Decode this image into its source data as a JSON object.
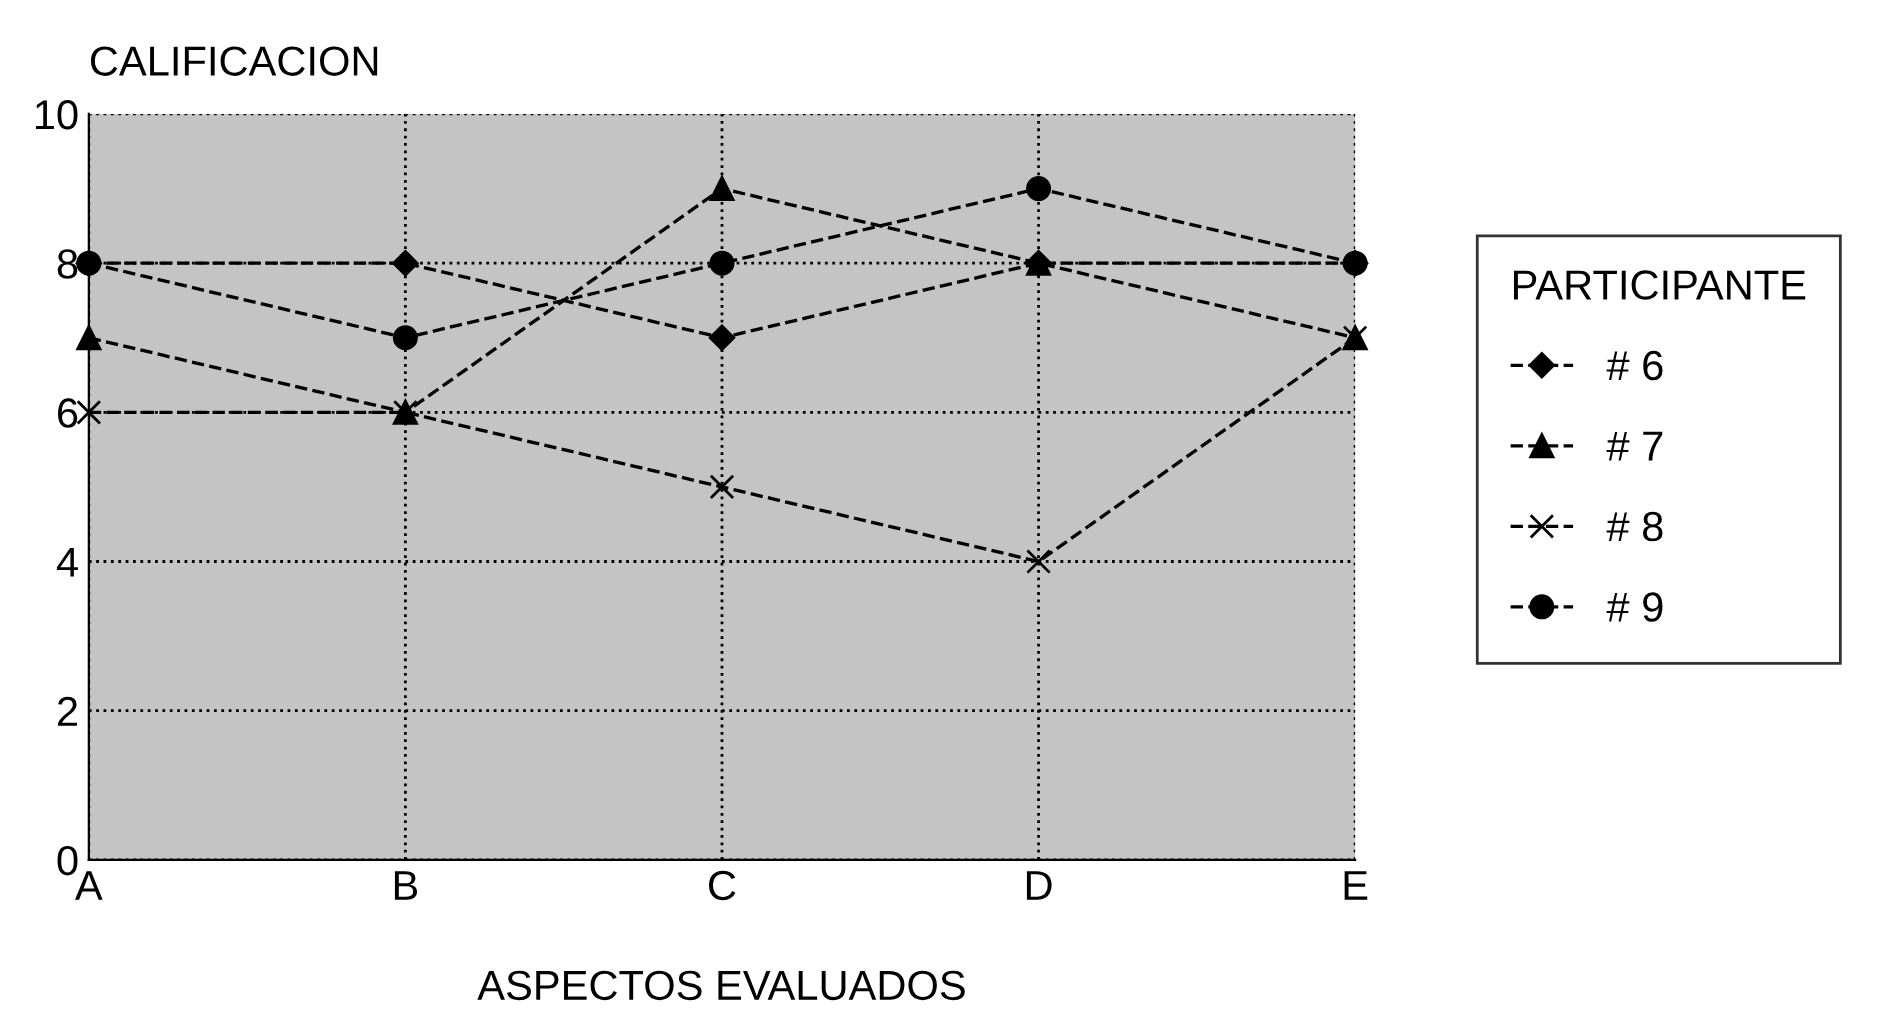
{
  "chart_data": {
    "type": "line",
    "ylabel": "CALIFICACION",
    "xlabel": "ASPECTOS EVALUADOS",
    "legend_title": "PARTICIPANTE",
    "categories": [
      "A",
      "B",
      "C",
      "D",
      "E"
    ],
    "series": [
      {
        "name": "# 6",
        "color": "#000000",
        "marker": "diamond",
        "values": [
          8,
          8,
          7,
          8,
          8
        ]
      },
      {
        "name": "# 7",
        "color": "#000000",
        "marker": "triangle",
        "values": [
          7,
          6,
          9,
          8,
          7
        ]
      },
      {
        "name": "# 8",
        "color": "#000000",
        "marker": "cross",
        "values": [
          6,
          6,
          5,
          4,
          7
        ]
      },
      {
        "name": "# 9",
        "color": "#000000",
        "marker": "circle",
        "values": [
          8,
          7,
          8,
          9,
          8
        ]
      }
    ],
    "ylim": [
      0,
      10
    ],
    "yticks": [
      0,
      2,
      4,
      6,
      8,
      10
    ],
    "grid": true,
    "legend": "right",
    "line_style": "dashed"
  }
}
